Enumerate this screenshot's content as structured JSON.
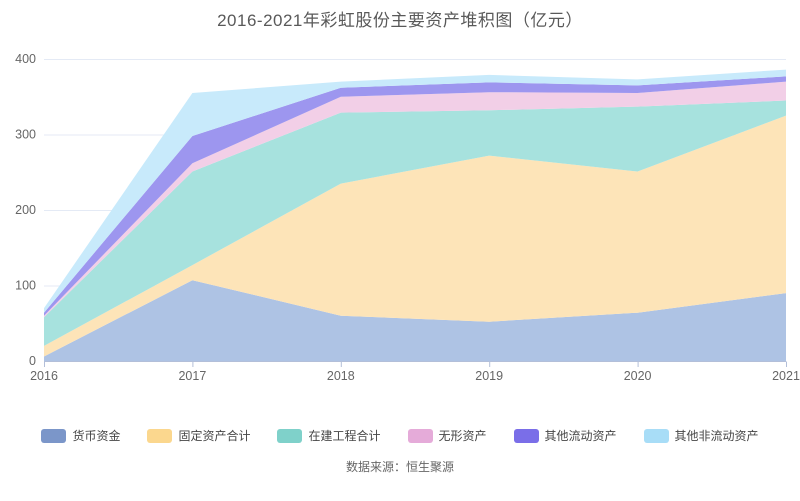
{
  "page": {
    "title": "2016-2021年彩虹股份主要资产堆积图（亿元）",
    "source": "数据来源：恒生聚源"
  },
  "chart_data": {
    "type": "area",
    "stacked": true,
    "title": "2016-2021年彩虹股份主要资产堆积图（亿元）",
    "categories": [
      "2016",
      "2017",
      "2018",
      "2019",
      "2020",
      "2021"
    ],
    "series": [
      {
        "name": "货币资金",
        "values": [
          6,
          107,
          60,
          52,
          64,
          90
        ],
        "legend_color": "#7B96C9",
        "area_color": "#AEC3E4"
      },
      {
        "name": "固定资产合计",
        "values": [
          14,
          20,
          175,
          220,
          187,
          235
        ],
        "legend_color": "#FBD78E",
        "area_color": "#FDE4B8"
      },
      {
        "name": "在建工程合计",
        "values": [
          38,
          124,
          94,
          60,
          86,
          20
        ],
        "legend_color": "#7FD1CA",
        "area_color": "#A7E2DE"
      },
      {
        "name": "无形资产",
        "values": [
          2,
          11,
          21,
          24,
          18,
          25
        ],
        "legend_color": "#E5ABD9",
        "area_color": "#F2CFE7"
      },
      {
        "name": "其他流动资产",
        "values": [
          4,
          36,
          12,
          13,
          10,
          7
        ],
        "legend_color": "#7A6EE8",
        "area_color": "#9D96EF"
      },
      {
        "name": "其他非流动资产",
        "values": [
          6,
          57,
          8,
          10,
          8,
          9
        ],
        "legend_color": "#A8DDF7",
        "area_color": "#C8EAFB"
      }
    ],
    "xlabel": "",
    "ylabel": "",
    "ylim": [
      0,
      400
    ],
    "yticks": [
      0,
      100,
      200,
      300,
      400
    ],
    "grid": true,
    "legend_position": "bottom",
    "axis_label_color": "#666666",
    "grid_color": "#E4EAF5",
    "axis_line_color": "#B3BFD9"
  }
}
